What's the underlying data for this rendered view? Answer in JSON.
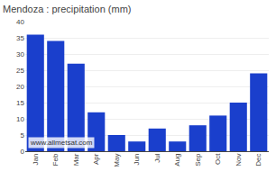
{
  "chart_data": {
    "type": "bar",
    "title": "Mendoza : precipitation (mm)",
    "categories": [
      "Jan",
      "Feb",
      "Mar",
      "Apr",
      "May",
      "Jun",
      "Jul",
      "Aug",
      "Sep",
      "Oct",
      "Nov",
      "Dec"
    ],
    "values": [
      36,
      34,
      27,
      12,
      5,
      3,
      7,
      3,
      8,
      11,
      15,
      24
    ],
    "color": "#1a3fcc",
    "ylim": [
      0,
      40
    ],
    "yticks": [
      0,
      5,
      10,
      15,
      20,
      25,
      30,
      35,
      40
    ],
    "grid": true,
    "annotations": [
      "www.allmetsat.com"
    ]
  }
}
